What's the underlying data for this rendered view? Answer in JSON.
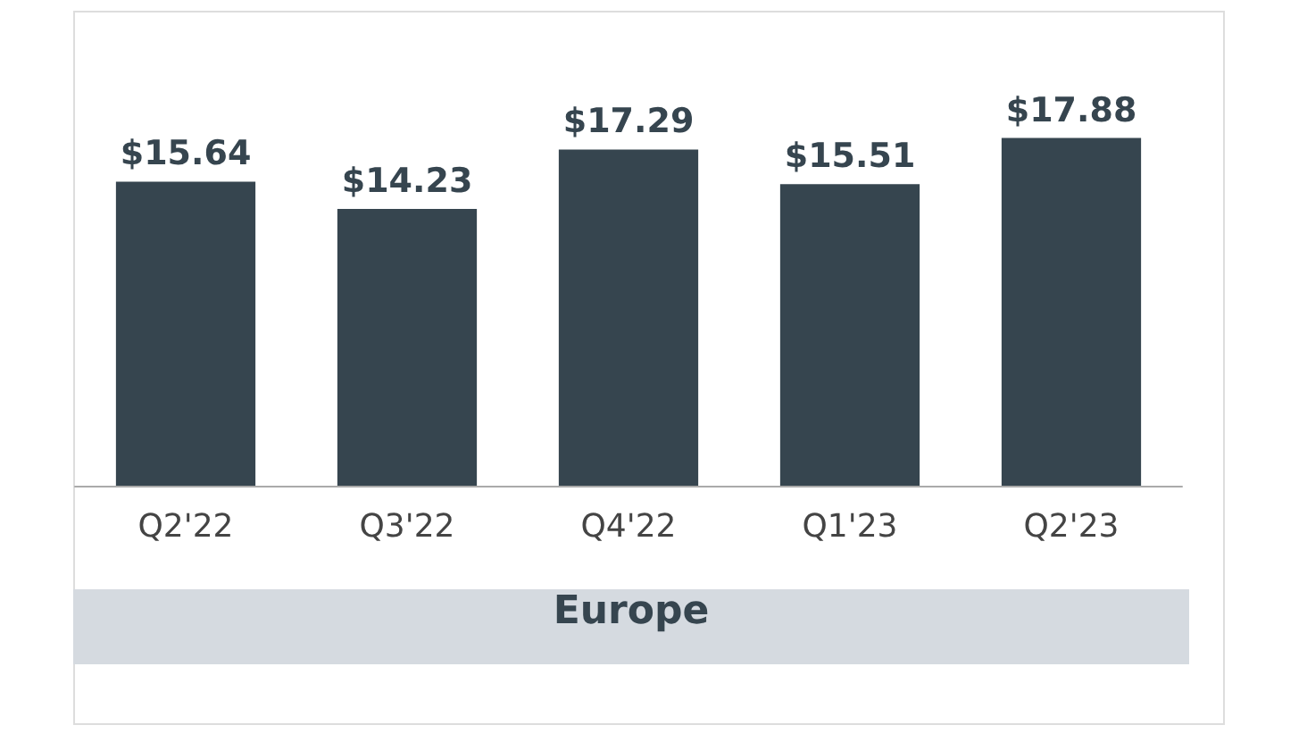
{
  "chart_data": {
    "type": "bar",
    "title": "Europe",
    "categories": [
      "Q2'22",
      "Q3'22",
      "Q4'22",
      "Q1'23",
      "Q2'23"
    ],
    "values": [
      15.64,
      14.23,
      17.29,
      15.51,
      17.88
    ],
    "value_labels": [
      "$15.64",
      "$14.23",
      "$17.29",
      "$15.51",
      "$17.88"
    ],
    "color": "#36454f",
    "grid": false
  }
}
